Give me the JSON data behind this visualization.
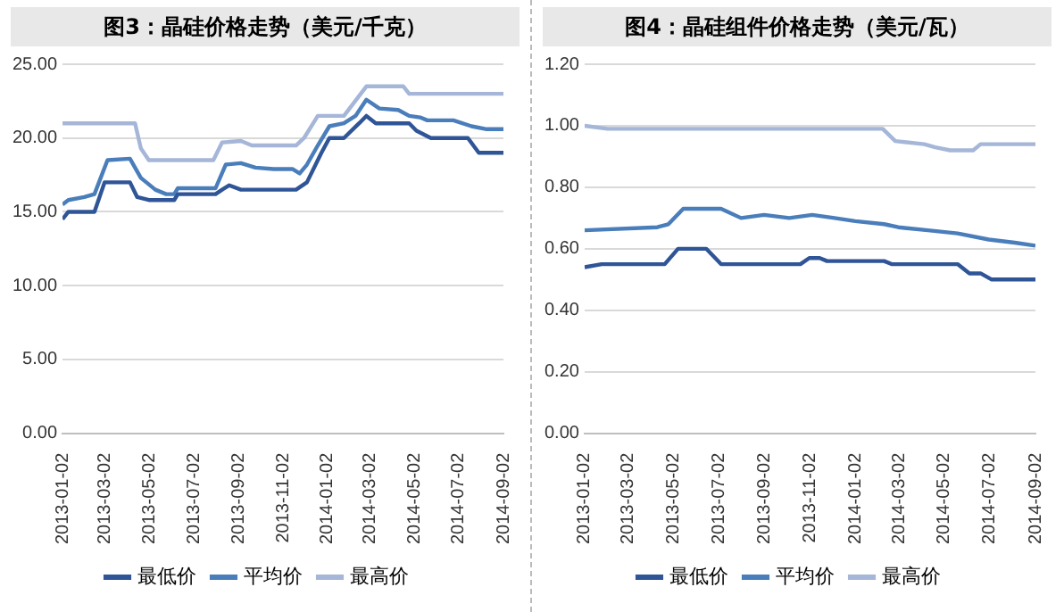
{
  "chart_data": [
    {
      "type": "line",
      "title": "图3：晶硅价格走势（美元/千克）",
      "legend": "bottom",
      "grid": "y",
      "marker": "none",
      "xlim": [
        "2013-01-02",
        "2014-09-02"
      ],
      "xticks": [
        "2013-01-02",
        "2013-03-02",
        "2013-05-02",
        "2013-07-02",
        "2013-09-02",
        "2013-11-02",
        "2014-01-02",
        "2014-03-02",
        "2014-05-02",
        "2014-07-02",
        "2014-09-02"
      ],
      "ylim": [
        0,
        25
      ],
      "yticks": [
        {
          "value": 0,
          "label": "0.00"
        },
        {
          "value": 5,
          "label": "5.00"
        },
        {
          "value": 10,
          "label": "10.00"
        },
        {
          "value": 15,
          "label": "15.00"
        },
        {
          "value": 20,
          "label": "20.00"
        },
        {
          "value": 25,
          "label": "25.00"
        }
      ],
      "series": [
        {
          "name": "最低价",
          "color": "#2f5597",
          "x": [
            "2013-01-02",
            "2013-01-10",
            "2013-02-15",
            "2013-03-01",
            "2013-04-05",
            "2013-04-15",
            "2013-05-01",
            "2013-06-05",
            "2013-06-10",
            "2013-08-01",
            "2013-08-10",
            "2013-08-20",
            "2013-09-05",
            "2013-11-20",
            "2013-12-05",
            "2013-12-25",
            "2014-01-05",
            "2014-01-25",
            "2014-02-15",
            "2014-02-25",
            "2014-03-10",
            "2014-04-25",
            "2014-05-05",
            "2014-05-25",
            "2014-07-15",
            "2014-07-30",
            "2014-09-02"
          ],
          "values": [
            14.5,
            15,
            15,
            17,
            17,
            16,
            15.8,
            15.8,
            16.2,
            16.2,
            16.5,
            16.8,
            16.5,
            16.5,
            17,
            19,
            20,
            20,
            21,
            21.5,
            21,
            21,
            20.5,
            20,
            20,
            19,
            19
          ]
        },
        {
          "name": "平均价",
          "color": "#4a7ebb",
          "x": [
            "2013-01-02",
            "2013-01-10",
            "2013-02-01",
            "2013-02-15",
            "2013-03-05",
            "2013-04-05",
            "2013-04-20",
            "2013-05-10",
            "2013-05-25",
            "2013-06-05",
            "2013-06-10",
            "2013-08-01",
            "2013-08-15",
            "2013-09-05",
            "2013-09-25",
            "2013-10-20",
            "2013-11-15",
            "2013-11-25",
            "2013-12-05",
            "2013-12-20",
            "2014-01-05",
            "2014-01-25",
            "2014-02-10",
            "2014-02-25",
            "2014-03-15",
            "2014-04-10",
            "2014-04-25",
            "2014-05-10",
            "2014-05-20",
            "2014-06-25",
            "2014-07-20",
            "2014-08-10",
            "2014-09-02"
          ],
          "values": [
            15.5,
            15.8,
            16,
            16.2,
            18.5,
            18.6,
            17.3,
            16.5,
            16.2,
            16.2,
            16.6,
            16.6,
            18.2,
            18.3,
            18,
            17.9,
            17.9,
            17.6,
            18.2,
            19.5,
            20.8,
            21,
            21.5,
            22.6,
            22,
            21.9,
            21.5,
            21.4,
            21.2,
            21.2,
            20.8,
            20.6,
            20.6
          ]
        },
        {
          "name": "最高价",
          "color": "#a5b6d8",
          "x": [
            "2013-01-02",
            "2013-04-12",
            "2013-04-20",
            "2013-05-01",
            "2013-07-29",
            "2013-08-10",
            "2013-09-05",
            "2013-09-20",
            "2013-11-20",
            "2013-12-01",
            "2013-12-20",
            "2014-01-25",
            "2014-02-25",
            "2014-04-17",
            "2014-04-25",
            "2014-09-02"
          ],
          "values": [
            21,
            21,
            19.3,
            18.5,
            18.5,
            19.7,
            19.8,
            19.5,
            19.5,
            20,
            21.5,
            21.5,
            23.5,
            23.5,
            23,
            23
          ]
        }
      ]
    },
    {
      "type": "line",
      "title": "图4：晶硅组件价格走势（美元/瓦）",
      "legend": "bottom",
      "grid": "y",
      "marker": "none",
      "xlim": [
        "2013-01-02",
        "2014-09-02"
      ],
      "xticks": [
        "2013-01-02",
        "2013-03-02",
        "2013-05-02",
        "2013-07-02",
        "2013-09-02",
        "2013-11-02",
        "2014-01-02",
        "2014-03-02",
        "2014-05-02",
        "2014-07-02",
        "2014-09-02"
      ],
      "ylim": [
        0,
        1.2
      ],
      "yticks": [
        {
          "value": 0,
          "label": "0.00"
        },
        {
          "value": 0.2,
          "label": "0.20"
        },
        {
          "value": 0.4,
          "label": "0.40"
        },
        {
          "value": 0.6,
          "label": "0.60"
        },
        {
          "value": 0.8,
          "label": "0.80"
        },
        {
          "value": 1,
          "label": "1.00"
        },
        {
          "value": 1.2,
          "label": "1.20"
        }
      ],
      "series": [
        {
          "name": "最低价",
          "color": "#2f5597",
          "x": [
            "2013-01-02",
            "2013-01-25",
            "2013-04-20",
            "2013-05-08",
            "2013-06-15",
            "2013-07-05",
            "2013-10-20",
            "2013-11-01",
            "2013-11-15",
            "2013-11-25",
            "2014-02-10",
            "2014-02-20",
            "2014-05-20",
            "2014-06-05",
            "2014-06-20",
            "2014-07-05",
            "2014-09-02"
          ],
          "values": [
            0.54,
            0.55,
            0.55,
            0.6,
            0.6,
            0.55,
            0.55,
            0.57,
            0.57,
            0.56,
            0.56,
            0.55,
            0.55,
            0.52,
            0.52,
            0.5,
            0.5
          ]
        },
        {
          "name": "平均价",
          "color": "#4a7ebb",
          "x": [
            "2013-01-02",
            "2013-04-10",
            "2013-04-25",
            "2013-05-15",
            "2013-07-05",
            "2013-08-01",
            "2013-09-01",
            "2013-10-05",
            "2013-11-05",
            "2013-12-05",
            "2014-01-02",
            "2014-02-10",
            "2014-03-01",
            "2014-04-10",
            "2014-05-20",
            "2014-07-01",
            "2014-08-05",
            "2014-09-02"
          ],
          "values": [
            0.66,
            0.67,
            0.68,
            0.73,
            0.73,
            0.7,
            0.71,
            0.7,
            0.71,
            0.7,
            0.69,
            0.68,
            0.67,
            0.66,
            0.65,
            0.63,
            0.62,
            0.61
          ]
        },
        {
          "name": "最高价",
          "color": "#a5b6d8",
          "x": [
            "2013-01-02",
            "2013-02-02",
            "2014-02-08",
            "2014-02-25",
            "2014-04-05",
            "2014-04-20",
            "2014-05-10",
            "2014-06-10",
            "2014-06-20",
            "2014-09-02"
          ],
          "values": [
            1,
            0.99,
            0.99,
            0.95,
            0.94,
            0.93,
            0.92,
            0.92,
            0.94,
            0.94
          ]
        }
      ]
    }
  ]
}
